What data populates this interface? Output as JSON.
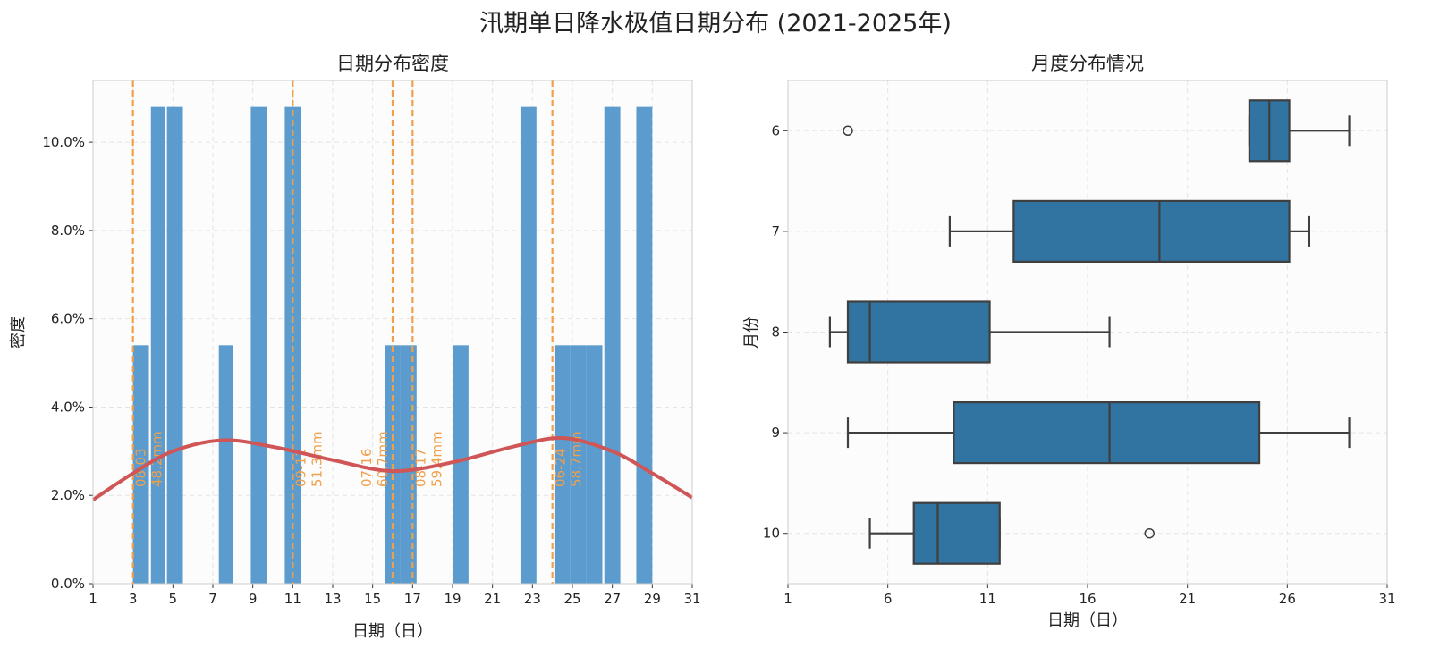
{
  "title": "汛期单日降水极值日期分布 (2021-2025年)",
  "chart_data": [
    {
      "type": "bar",
      "title": "日期分布密度",
      "xlabel": "日期（日）",
      "ylabel": "密度",
      "xlim": [
        1,
        31
      ],
      "ylim": [
        0,
        11.4
      ],
      "xticks": [
        "1",
        "3",
        "5",
        "7",
        "9",
        "11",
        "13",
        "15",
        "17",
        "19",
        "21",
        "23",
        "25",
        "27",
        "29",
        "31"
      ],
      "yticks": [
        "0.0%",
        "2.0%",
        "4.0%",
        "6.0%",
        "8.0%",
        "10.0%"
      ],
      "grid": true,
      "bins": [
        {
          "start": 3.0,
          "end": 3.8,
          "density": 5.4
        },
        {
          "start": 3.9,
          "end": 4.6,
          "density": 10.8
        },
        {
          "start": 4.7,
          "end": 5.5,
          "density": 10.8
        },
        {
          "start": 7.3,
          "end": 8.0,
          "density": 5.4
        },
        {
          "start": 8.9,
          "end": 9.7,
          "density": 10.8
        },
        {
          "start": 10.6,
          "end": 11.4,
          "density": 10.8
        },
        {
          "start": 15.6,
          "end": 16.4,
          "density": 5.4
        },
        {
          "start": 16.4,
          "end": 17.2,
          "density": 5.4
        },
        {
          "start": 19.0,
          "end": 19.8,
          "density": 5.4
        },
        {
          "start": 22.4,
          "end": 23.2,
          "density": 10.8
        },
        {
          "start": 24.1,
          "end": 24.9,
          "density": 5.4
        },
        {
          "start": 24.9,
          "end": 25.7,
          "density": 5.4
        },
        {
          "start": 25.7,
          "end": 26.5,
          "density": 5.4
        },
        {
          "start": 26.6,
          "end": 27.4,
          "density": 10.8
        },
        {
          "start": 28.2,
          "end": 29.0,
          "density": 10.8
        }
      ],
      "kde": {
        "x": [
          1,
          3,
          5,
          7.5,
          10,
          13,
          16,
          19,
          22,
          24.5,
          27,
          29,
          31
        ],
        "y": [
          1.9,
          2.5,
          3.0,
          3.25,
          3.1,
          2.8,
          2.55,
          2.75,
          3.1,
          3.3,
          3.0,
          2.5,
          1.95
        ]
      },
      "annotations": [
        {
          "x": 3,
          "date": "08-03",
          "value": "48.2mm"
        },
        {
          "x": 11,
          "date": "09-11",
          "value": "51.3mm"
        },
        {
          "x": 16,
          "date": "07-16",
          "value": "60.7mm"
        },
        {
          "x": 17,
          "date": "08-17",
          "value": "59.4mm"
        },
        {
          "x": 24,
          "date": "06-24",
          "value": "58.7mm"
        }
      ],
      "colors": {
        "bar": "#5b9bcd",
        "kde": "#d05556",
        "annotation": "#f0a04b"
      }
    },
    {
      "type": "box",
      "title": "月度分布情况",
      "xlabel": "日期（日）",
      "ylabel": "月份",
      "xlim": [
        1,
        31
      ],
      "xticks": [
        "1",
        "6",
        "11",
        "16",
        "21",
        "26",
        "31"
      ],
      "grid": true,
      "boxes": [
        {
          "month": "6",
          "whislo": 24.1,
          "q1": 24.1,
          "med": 25.1,
          "q3": 26.1,
          "whishi": 29.1,
          "fliers": [
            4.0
          ]
        },
        {
          "month": "7",
          "whislo": 9.1,
          "q1": 12.3,
          "med": 19.6,
          "q3": 26.1,
          "whishi": 27.1,
          "fliers": []
        },
        {
          "month": "8",
          "whislo": 3.1,
          "q1": 4.0,
          "med": 5.1,
          "q3": 11.1,
          "whishi": 17.1,
          "fliers": []
        },
        {
          "month": "9",
          "whislo": 4.0,
          "q1": 9.3,
          "med": 17.1,
          "q3": 24.6,
          "whishi": 29.1,
          "fliers": []
        },
        {
          "month": "10",
          "whislo": 5.1,
          "q1": 7.3,
          "med": 8.5,
          "q3": 11.6,
          "whishi": 11.6,
          "fliers": [
            19.1
          ]
        }
      ],
      "colors": {
        "box": "#3274a1",
        "line": "#3f3f3f"
      }
    }
  ]
}
